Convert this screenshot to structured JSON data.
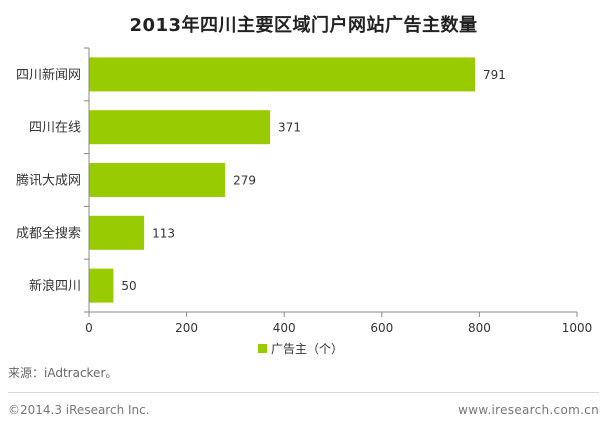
{
  "chart_data": {
    "type": "bar",
    "orientation": "horizontal",
    "title": "2013年四川主要区域门户网站广告主数量",
    "categories": [
      "四川新闻网",
      "四川在线",
      "腾讯大成网",
      "成都全搜索",
      "新浪四川"
    ],
    "series": [
      {
        "name": "广告主（个）",
        "values": [
          791,
          371,
          279,
          113,
          50
        ]
      }
    ],
    "xlim": [
      0,
      1000
    ],
    "xticks": [
      0,
      200,
      400,
      600,
      800,
      1000
    ],
    "data_labels": true,
    "grid": false,
    "legend_position": "bottom",
    "color": "#99cc00"
  },
  "footer": {
    "source": "来源：iAdtracker。",
    "copyright": "©2014.3 iResearch Inc.",
    "website": "www.iresearch.com.cn"
  }
}
